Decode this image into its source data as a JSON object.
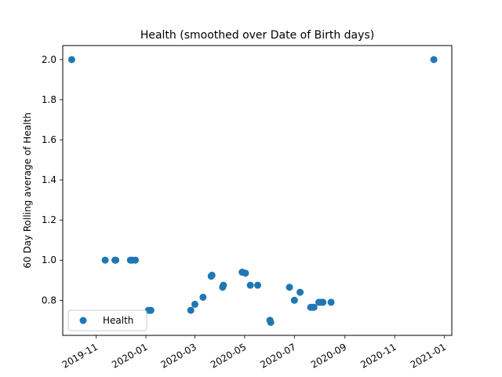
{
  "chart_data": {
    "type": "scatter",
    "title": "Health  (smoothed over Date of Birth days)",
    "xlabel": "",
    "ylabel": "60 Day Rolling average of Health",
    "x_axis_type": "date",
    "xlim": [
      "2019-09-21",
      "2021-01-10"
    ],
    "ylim": [
      0.625,
      2.07
    ],
    "x_ticks": [
      "2019-11-01",
      "2020-01-01",
      "2020-03-01",
      "2020-05-01",
      "2020-07-01",
      "2020-09-01",
      "2020-11-01",
      "2021-01-01"
    ],
    "x_tick_labels": [
      "2019-11",
      "2020-01",
      "2020-03",
      "2020-05",
      "2020-07",
      "2020-09",
      "2020-11",
      "2021-01"
    ],
    "x_tick_rotation_deg": 30,
    "y_ticks": [
      0.8,
      1.0,
      1.2,
      1.4,
      1.6,
      1.8,
      2.0
    ],
    "y_tick_labels": [
      "0.8",
      "1.0",
      "1.2",
      "1.4",
      "1.6",
      "1.8",
      "2.0"
    ],
    "grid": false,
    "legend_position": "lower-left",
    "series": [
      {
        "name": "Health",
        "color": "#1f77b4",
        "marker": "circle",
        "points": [
          {
            "x": "2019-10-02",
            "y": 2.0
          },
          {
            "x": "2019-11-12",
            "y": 1.0
          },
          {
            "x": "2019-11-24",
            "y": 1.0
          },
          {
            "x": "2019-11-25",
            "y": 1.0
          },
          {
            "x": "2019-12-13",
            "y": 1.0
          },
          {
            "x": "2019-12-15",
            "y": 1.0
          },
          {
            "x": "2019-12-19",
            "y": 1.0
          },
          {
            "x": "2020-01-04",
            "y": 0.75
          },
          {
            "x": "2020-01-07",
            "y": 0.75
          },
          {
            "x": "2020-02-25",
            "y": 0.75
          },
          {
            "x": "2020-03-01",
            "y": 0.78
          },
          {
            "x": "2020-03-11",
            "y": 0.815
          },
          {
            "x": "2020-03-21",
            "y": 0.92
          },
          {
            "x": "2020-03-22",
            "y": 0.925
          },
          {
            "x": "2020-04-04",
            "y": 0.865
          },
          {
            "x": "2020-04-05",
            "y": 0.875
          },
          {
            "x": "2020-04-28",
            "y": 0.94
          },
          {
            "x": "2020-05-02",
            "y": 0.935
          },
          {
            "x": "2020-05-08",
            "y": 0.875
          },
          {
            "x": "2020-05-17",
            "y": 0.875
          },
          {
            "x": "2020-06-01",
            "y": 0.7
          },
          {
            "x": "2020-06-02",
            "y": 0.69
          },
          {
            "x": "2020-06-25",
            "y": 0.865
          },
          {
            "x": "2020-07-01",
            "y": 0.8
          },
          {
            "x": "2020-07-08",
            "y": 0.84
          },
          {
            "x": "2020-07-21",
            "y": 0.765
          },
          {
            "x": "2020-07-23",
            "y": 0.765
          },
          {
            "x": "2020-07-25",
            "y": 0.765
          },
          {
            "x": "2020-07-31",
            "y": 0.79
          },
          {
            "x": "2020-08-03",
            "y": 0.79
          },
          {
            "x": "2020-08-05",
            "y": 0.79
          },
          {
            "x": "2020-08-15",
            "y": 0.79
          },
          {
            "x": "2020-12-19",
            "y": 2.0
          }
        ]
      }
    ]
  }
}
